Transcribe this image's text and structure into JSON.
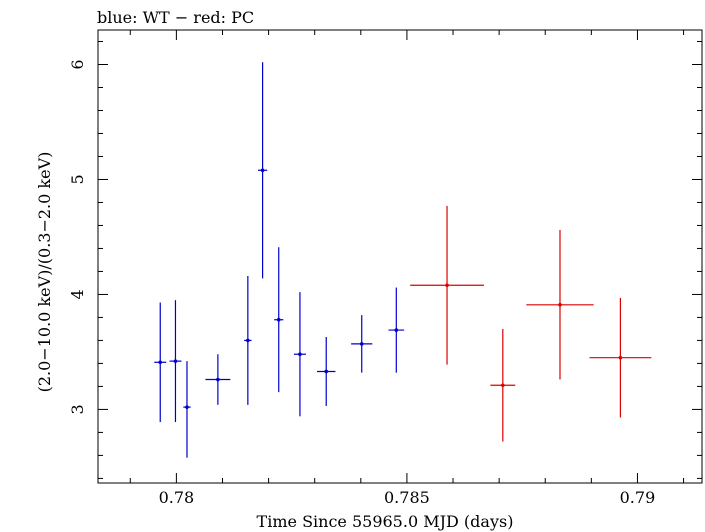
{
  "chart_data": {
    "type": "scatter",
    "title": "blue: WT − red: PC",
    "xlabel": "Time Since 55965.0 MJD (days)",
    "ylabel": "(2.0−10.0 keV)/(0.3−2.0 keV)",
    "xlim": [
      0.7783,
      0.7914
    ],
    "ylim": [
      2.36,
      6.3
    ],
    "xticks": [
      0.78,
      0.785,
      0.79
    ],
    "xtick_labels": [
      "0.78",
      "0.785",
      "0.79"
    ],
    "yticks": [
      3,
      4,
      5,
      6
    ],
    "ytick_labels": [
      "3",
      "4",
      "5",
      "6"
    ],
    "grid": false,
    "legend": "none",
    "series": [
      {
        "name": "WT",
        "color": "#0000cc",
        "points": [
          {
            "x": 0.77965,
            "xerr": 0.00013,
            "y": 3.41,
            "yerr_lo": 0.52,
            "yerr_hi": 0.52
          },
          {
            "x": 0.77998,
            "xerr": 0.00013,
            "y": 3.42,
            "yerr_lo": 0.53,
            "yerr_hi": 0.53
          },
          {
            "x": 0.78023,
            "xerr": 8e-05,
            "y": 3.02,
            "yerr_lo": 0.44,
            "yerr_hi": 0.4
          },
          {
            "x": 0.7809,
            "xerr": 0.00027,
            "y": 3.26,
            "yerr_lo": 0.22,
            "yerr_hi": 0.22
          },
          {
            "x": 0.78155,
            "xerr": 8e-05,
            "y": 3.6,
            "yerr_lo": 0.56,
            "yerr_hi": 0.56
          },
          {
            "x": 0.78187,
            "xerr": 0.0001,
            "y": 5.08,
            "yerr_lo": 0.94,
            "yerr_hi": 0.94
          },
          {
            "x": 0.78222,
            "xerr": 0.0001,
            "y": 3.78,
            "yerr_lo": 0.63,
            "yerr_hi": 0.63
          },
          {
            "x": 0.78268,
            "xerr": 0.00013,
            "y": 3.48,
            "yerr_lo": 0.54,
            "yerr_hi": 0.54
          },
          {
            "x": 0.78325,
            "xerr": 0.0002,
            "y": 3.33,
            "yerr_lo": 0.3,
            "yerr_hi": 0.3
          },
          {
            "x": 0.78402,
            "xerr": 0.00023,
            "y": 3.57,
            "yerr_lo": 0.25,
            "yerr_hi": 0.25
          },
          {
            "x": 0.78477,
            "xerr": 0.00017,
            "y": 3.69,
            "yerr_lo": 0.37,
            "yerr_hi": 0.37
          }
        ]
      },
      {
        "name": "PC",
        "color": "#dd0000",
        "points": [
          {
            "x": 0.78587,
            "xerr": 0.0008,
            "y": 4.08,
            "yerr_lo": 0.69,
            "yerr_hi": 0.69
          },
          {
            "x": 0.78708,
            "xerr": 0.00027,
            "y": 3.21,
            "yerr_lo": 0.49,
            "yerr_hi": 0.49
          },
          {
            "x": 0.78832,
            "xerr": 0.00073,
            "y": 3.91,
            "yerr_lo": 0.65,
            "yerr_hi": 0.65
          },
          {
            "x": 0.78963,
            "xerr": 0.00067,
            "y": 3.45,
            "yerr_lo": 0.52,
            "yerr_hi": 0.52
          }
        ]
      }
    ]
  }
}
